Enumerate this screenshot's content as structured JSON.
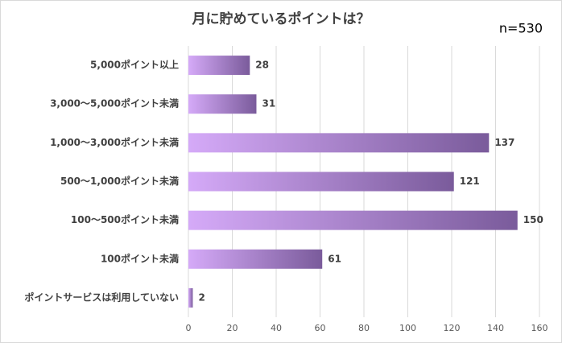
{
  "chart_data": {
    "type": "hbar",
    "title": "月に貯めているポイントは？",
    "annotation": "n=530",
    "categories": [
      "5,000ポイント以上",
      "3,000〜5,000ポイント未満",
      "1,000〜3,000ポイント未満",
      "500〜1,000ポイント未満",
      "100〜500ポイント未満",
      "100ポイント未満",
      "ポイントサービスは利用していない"
    ],
    "values": [
      28,
      31,
      137,
      121,
      150,
      61,
      2
    ],
    "gradient": [
      "#d5aaf8",
      "#7a5b9b"
    ],
    "xlim": [
      0,
      160
    ],
    "xticks": [
      0,
      20,
      40,
      60,
      80,
      100,
      120,
      140,
      160
    ],
    "grid": true
  }
}
